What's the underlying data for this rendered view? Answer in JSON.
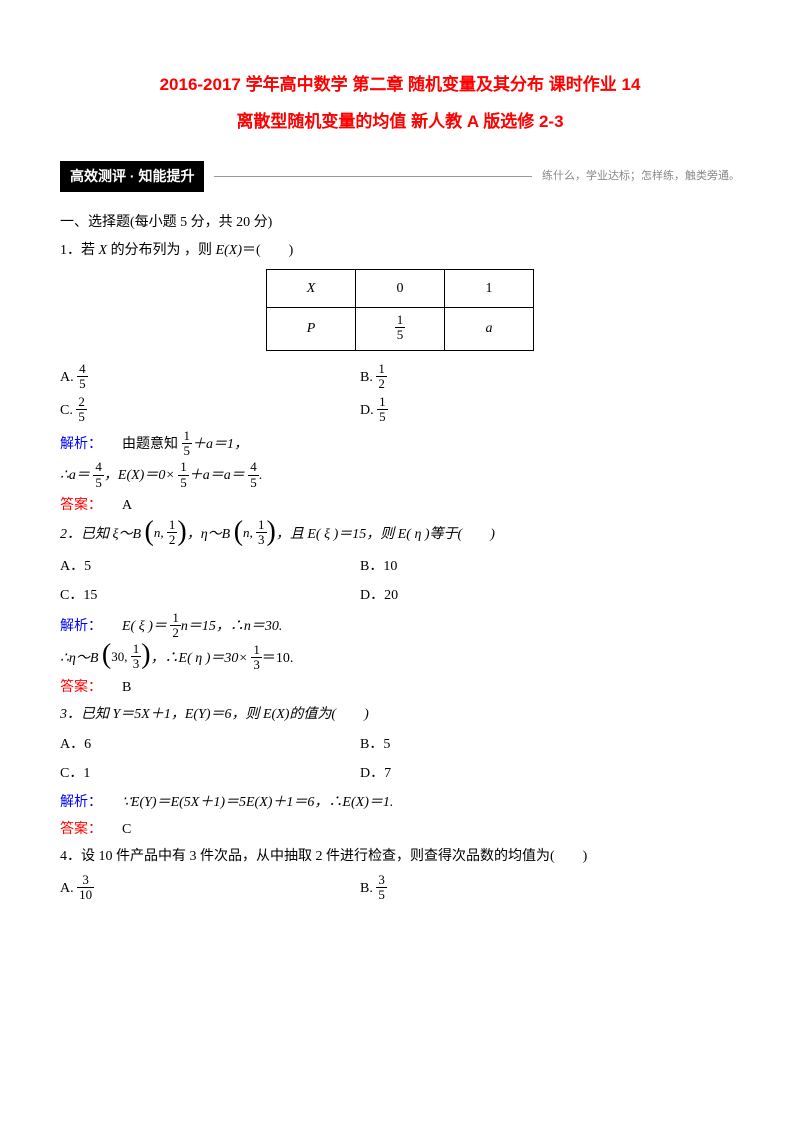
{
  "title1": "2016-2017 学年高中数学 第二章 随机变量及其分布 课时作业 14",
  "title2": "离散型随机变量的均值 新人教 A 版选修 2-3",
  "banner": {
    "left": "高效测评 · 知能提升",
    "right": "练什么，学业达标；怎样练，触类旁通。"
  },
  "section1": "一、选择题(每小题 5 分，共 20 分)",
  "q1": {
    "stem_a": "1．若 ",
    "stem_b": "X",
    "stem_c": " 的分布列为 ，则 ",
    "stem_d": "E(X)",
    "stem_e": "＝(　　)",
    "table": {
      "h1": "X",
      "h2": "0",
      "h3": "1",
      "r1": "P",
      "r3": "a"
    },
    "frac15_n": "1",
    "frac15_d": "5",
    "A_n": "4",
    "A_d": "5",
    "B_n": "1",
    "B_d": "2",
    "C_n": "2",
    "C_d": "5",
    "D_n": "1",
    "D_d": "5",
    "sol1_a": "解析：",
    "sol1_b": "由题意知",
    "sol1_c": "＋a＝1，",
    "sol2_a": "∴a＝",
    "sol2_b": "，E(X)＝0×",
    "sol2_c": "＋a＝a＝",
    "sol2_d": ".",
    "sol_frac_a_n": "4",
    "sol_frac_a_d": "5",
    "ans_l": "答案：",
    "ans": "A"
  },
  "q2": {
    "stem_a": "2．已知 ξ～B",
    "bin1_a": "n, ",
    "bin1_n": "1",
    "bin1_d": "2",
    "stem_b": "，η～B",
    "bin2_a": "n, ",
    "bin2_n": "1",
    "bin2_d": "3",
    "stem_c": "，且 E( ξ )＝15，则 E( η )等于(　　)",
    "A": "A．5",
    "B": "B．10",
    "C": "C．15",
    "D": "D．20",
    "sol1_a": "解析：",
    "sol1_b": "E( ξ )＝",
    "sol1_c": "n＝15，∴n＝30.",
    "sol_frac_n": "1",
    "sol_frac_d": "2",
    "sol2_a": "∴η～B",
    "bin3_a": "30, ",
    "bin3_n": "1",
    "bin3_d": "3",
    "sol2_b": "，∴E( η )＝30×",
    "sol2_c": "＝10.",
    "sol2_frac_n": "1",
    "sol2_frac_d": "3",
    "ans_l": "答案：",
    "ans": "B"
  },
  "q3": {
    "stem": "3．已知 Y＝5X＋1，E(Y)＝6，则 E(X)的值为(　　)",
    "A": "A．6",
    "B": "B．5",
    "C": "C．1",
    "D": "D．7",
    "sol_a": "解析：",
    "sol_b": "∵E(Y)＝E(5X＋1)＝5E(X)＋1＝6，∴E(X)＝1.",
    "ans_l": "答案：",
    "ans": "C"
  },
  "q4": {
    "stem": "4．设 10 件产品中有 3 件次品，从中抽取 2 件进行检查，则查得次品数的均值为(　　)",
    "A_n": "3",
    "A_d": "10",
    "B_n": "3",
    "B_d": "5"
  },
  "labels": {
    "A": "A.",
    "B": "B.",
    "C": "C.",
    "D": "D."
  }
}
